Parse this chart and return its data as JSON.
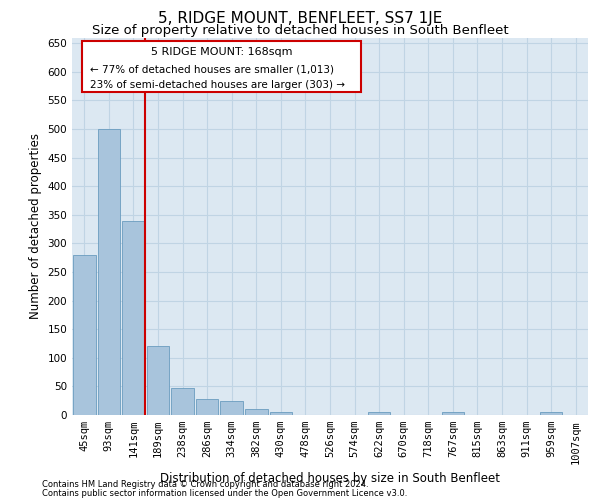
{
  "title": "5, RIDGE MOUNT, BENFLEET, SS7 1JE",
  "subtitle": "Size of property relative to detached houses in South Benfleet",
  "xlabel": "Distribution of detached houses by size in South Benfleet",
  "ylabel": "Number of detached properties",
  "footnote1": "Contains HM Land Registry data © Crown copyright and database right 2024.",
  "footnote2": "Contains public sector information licensed under the Open Government Licence v3.0.",
  "annotation_line1": "5 RIDGE MOUNT: 168sqm",
  "annotation_line2": "← 77% of detached houses are smaller (1,013)",
  "annotation_line3": "23% of semi-detached houses are larger (303) →",
  "bar_color": "#a8c4dc",
  "bar_edge_color": "#6a9cbf",
  "grid_color": "#c0d4e4",
  "background_color": "#dce8f2",
  "vline_color": "#cc0000",
  "bins": [
    "45sqm",
    "93sqm",
    "141sqm",
    "189sqm",
    "238sqm",
    "286sqm",
    "334sqm",
    "382sqm",
    "430sqm",
    "478sqm",
    "526sqm",
    "574sqm",
    "622sqm",
    "670sqm",
    "718sqm",
    "767sqm",
    "815sqm",
    "863sqm",
    "911sqm",
    "959sqm",
    "1007sqm"
  ],
  "values": [
    280,
    500,
    340,
    120,
    48,
    28,
    25,
    10,
    5,
    0,
    0,
    0,
    5,
    0,
    0,
    5,
    0,
    0,
    0,
    5,
    0
  ],
  "ylim": [
    0,
    660
  ],
  "yticks": [
    0,
    50,
    100,
    150,
    200,
    250,
    300,
    350,
    400,
    450,
    500,
    550,
    600,
    650
  ],
  "title_fontsize": 11,
  "subtitle_fontsize": 9.5,
  "axis_label_fontsize": 8.5,
  "tick_fontsize": 7.5,
  "footnote_fontsize": 6,
  "annotation_fontsize": 8
}
